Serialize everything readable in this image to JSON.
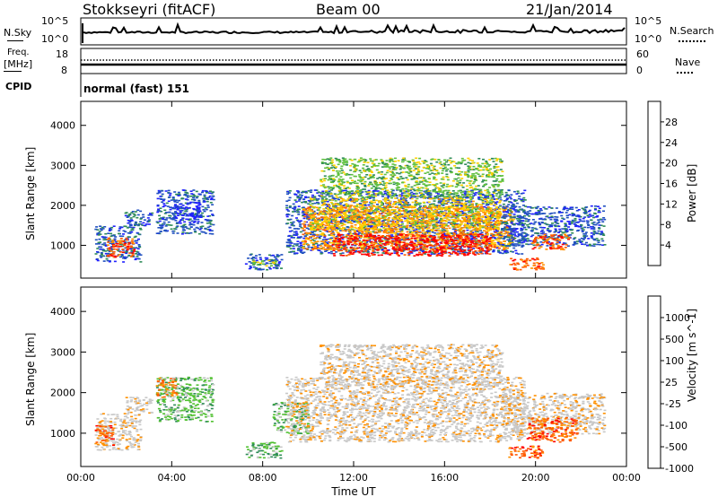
{
  "header": {
    "station": "Stokkseyri (fitACF)",
    "beam": "Beam 00",
    "date": "21/Jan/2014"
  },
  "strips": {
    "nsky": {
      "label": "N.Sky",
      "tick_top": "10^5",
      "tick_bottom": "10^0",
      "right_label": "N.Search",
      "right_tick_top": "10^5",
      "right_tick_bottom": "10^0"
    },
    "freq": {
      "label_line1": "Freq.",
      "label_line2": "[MHz]",
      "tick_top": "18",
      "tick_bottom": "8",
      "right_label": "Nave",
      "right_tick_top": "60",
      "right_tick_bottom": "0"
    },
    "cpid": {
      "label": "CPID",
      "value": "normal (fast) 151"
    }
  },
  "colors": {
    "power": [
      "#2020ff",
      "#2050c0",
      "#2e8b57",
      "#60c040",
      "#ffd000",
      "#ff9000",
      "#ff5a00",
      "#ff0000"
    ],
    "velocity": [
      "#ff0000",
      "#ff5a00",
      "#ff9000",
      "#c8c8c8",
      "#c8c8c8",
      "#50c030",
      "#2e8b57",
      "#2050c0"
    ],
    "ground_scatter": "#c8c8c8"
  },
  "chart_data": [
    {
      "type": "heatmap",
      "panel": "power",
      "ylabel": "Slant Range [km]",
      "xlabel": "",
      "x_ticks": [
        "00:00",
        "04:00",
        "08:00",
        "12:00",
        "16:00",
        "20:00",
        "00:00"
      ],
      "x_range_hours": [
        0,
        24
      ],
      "y_ticks": [
        1000,
        2000,
        3000,
        4000
      ],
      "ylim": [
        180,
        4600
      ],
      "colorbar": {
        "label": "Power [dB]",
        "ticks": [
          "4",
          "8",
          "12",
          "16",
          "20",
          "24",
          "28"
        ]
      },
      "regions": [
        {
          "t0": 0.6,
          "t1": 2.6,
          "r0": 600,
          "r1": 1500,
          "level": 1
        },
        {
          "t0": 1.1,
          "t1": 2.3,
          "r0": 700,
          "r1": 1200,
          "level": 6
        },
        {
          "t0": 1.9,
          "t1": 3.1,
          "r0": 1500,
          "r1": 1900,
          "level": 1
        },
        {
          "t0": 3.3,
          "t1": 5.8,
          "r0": 1300,
          "r1": 2400,
          "level": 1
        },
        {
          "t0": 4.0,
          "t1": 5.2,
          "r0": 1600,
          "r1": 2100,
          "level": 0
        },
        {
          "t0": 7.2,
          "t1": 8.8,
          "r0": 400,
          "r1": 800,
          "level": 1
        },
        {
          "t0": 7.5,
          "t1": 8.7,
          "r0": 500,
          "r1": 650,
          "level": 3
        },
        {
          "t0": 9.0,
          "t1": 19.5,
          "r0": 800,
          "r1": 2400,
          "level": 1
        },
        {
          "t0": 9.7,
          "t1": 19.0,
          "r0": 900,
          "r1": 2000,
          "level": 5
        },
        {
          "t0": 10.0,
          "t1": 18.4,
          "r0": 1400,
          "r1": 2200,
          "level": 4
        },
        {
          "t0": 11.0,
          "t1": 18.0,
          "r0": 750,
          "r1": 1300,
          "level": 7
        },
        {
          "t0": 10.5,
          "t1": 18.5,
          "r0": 2200,
          "r1": 3200,
          "level": 3
        },
        {
          "t0": 18.5,
          "t1": 23.0,
          "r0": 1000,
          "r1": 2000,
          "level": 1
        },
        {
          "t0": 19.8,
          "t1": 21.5,
          "r0": 900,
          "r1": 1300,
          "level": 6
        },
        {
          "t0": 18.8,
          "t1": 20.3,
          "r0": 400,
          "r1": 700,
          "level": 6
        }
      ]
    },
    {
      "type": "heatmap",
      "panel": "velocity",
      "ylabel": "Slant Range [km]",
      "xlabel": "Time UT",
      "x_ticks": [
        "00:00",
        "04:00",
        "08:00",
        "12:00",
        "16:00",
        "20:00",
        "00:00"
      ],
      "x_range_hours": [
        0,
        24
      ],
      "y_ticks": [
        1000,
        2000,
        3000,
        4000
      ],
      "ylim": [
        180,
        4600
      ],
      "colorbar": {
        "label": "Velocity [m s^-1]",
        "ticks": [
          "1000",
          "500",
          "100",
          "25",
          "-25",
          "-100",
          "-500",
          "-1000"
        ]
      },
      "regions": [
        {
          "t0": 0.6,
          "t1": 2.6,
          "r0": 600,
          "r1": 1500,
          "level": 3
        },
        {
          "t0": 0.6,
          "t1": 1.4,
          "r0": 700,
          "r1": 1200,
          "level": 1
        },
        {
          "t0": 1.9,
          "t1": 3.1,
          "r0": 1500,
          "r1": 1900,
          "level": 3
        },
        {
          "t0": 3.3,
          "t1": 5.8,
          "r0": 1300,
          "r1": 2400,
          "level": 5
        },
        {
          "t0": 3.3,
          "t1": 4.2,
          "r0": 1900,
          "r1": 2400,
          "level": 2
        },
        {
          "t0": 7.2,
          "t1": 8.8,
          "r0": 400,
          "r1": 800,
          "level": 5
        },
        {
          "t0": 8.4,
          "t1": 10.0,
          "r0": 1000,
          "r1": 1800,
          "level": 5
        },
        {
          "t0": 9.0,
          "t1": 19.5,
          "r0": 800,
          "r1": 2400,
          "level": 3
        },
        {
          "t0": 10.5,
          "t1": 18.5,
          "r0": 2200,
          "r1": 3200,
          "level": 3
        },
        {
          "t0": 18.5,
          "t1": 23.0,
          "r0": 1000,
          "r1": 2000,
          "level": 3
        },
        {
          "t0": 19.6,
          "t1": 21.8,
          "r0": 800,
          "r1": 1400,
          "level": 1
        },
        {
          "t0": 18.8,
          "t1": 20.3,
          "r0": 400,
          "r1": 700,
          "level": 1
        }
      ]
    }
  ]
}
